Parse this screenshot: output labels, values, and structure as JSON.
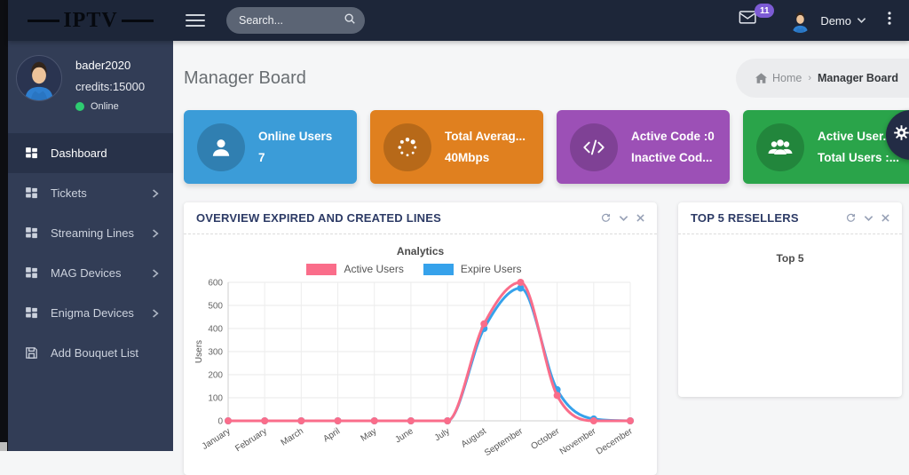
{
  "topbar": {
    "logo": "IPTV",
    "search_placeholder": "Search...",
    "notification_count": "11",
    "user_name": "Demo"
  },
  "sidebar": {
    "user": {
      "name": "bader2020",
      "credits": "credits:15000",
      "status": "Online"
    },
    "items": [
      {
        "label": "Dashboard",
        "icon": "grid-icon",
        "active": true,
        "chevron": false
      },
      {
        "label": "Tickets",
        "icon": "grid-icon",
        "active": false,
        "chevron": true
      },
      {
        "label": "Streaming Lines",
        "icon": "grid-icon",
        "active": false,
        "chevron": true
      },
      {
        "label": "MAG Devices",
        "icon": "grid-icon",
        "active": false,
        "chevron": true
      },
      {
        "label": "Enigma Devices",
        "icon": "grid-icon",
        "active": false,
        "chevron": true
      },
      {
        "label": "Add Bouquet List",
        "icon": "save-icon",
        "active": false,
        "chevron": false
      }
    ]
  },
  "page": {
    "title": "Manager Board",
    "breadcrumb": [
      "Home",
      "Manager Board"
    ]
  },
  "cards": [
    {
      "line1": "Online Users",
      "line2": "7",
      "color": "#3b9cd8",
      "icon": "user-icon"
    },
    {
      "line1": "Total Averag...",
      "line2": "40Mbps",
      "color": "#e0801f",
      "icon": "spinner-icon"
    },
    {
      "line1": "Active Code :0",
      "line2": "Inactive Cod...",
      "color": "#9c50b6",
      "icon": "code-icon"
    },
    {
      "line1": "Active User...",
      "line2": "Total Users :...",
      "color": "#2aa44a",
      "icon": "users-icon"
    }
  ],
  "panels": {
    "chart": {
      "title": "OVERVIEW EXPIRED AND CREATED LINES"
    },
    "top5": {
      "title": "TOP 5 RESELLERS",
      "body": "Top 5"
    }
  },
  "chart_data": {
    "type": "line",
    "title": "Analytics",
    "ylabel": "Users",
    "ylim": [
      0,
      600
    ],
    "yticks": [
      0,
      100,
      200,
      300,
      400,
      500,
      600
    ],
    "grid": true,
    "legend_position": "top",
    "categories": [
      "January",
      "February",
      "March",
      "April",
      "May",
      "June",
      "July",
      "August",
      "September",
      "October",
      "November",
      "December"
    ],
    "series": [
      {
        "name": "Active Users",
        "color": "#fa6d8a",
        "values": [
          0,
          0,
          0,
          0,
          0,
          0,
          0,
          420,
          600,
          110,
          0,
          0
        ]
      },
      {
        "name": "Expire Users",
        "color": "#36a2eb",
        "values": [
          0,
          0,
          0,
          0,
          0,
          0,
          0,
          400,
          575,
          135,
          8,
          0
        ]
      }
    ]
  }
}
